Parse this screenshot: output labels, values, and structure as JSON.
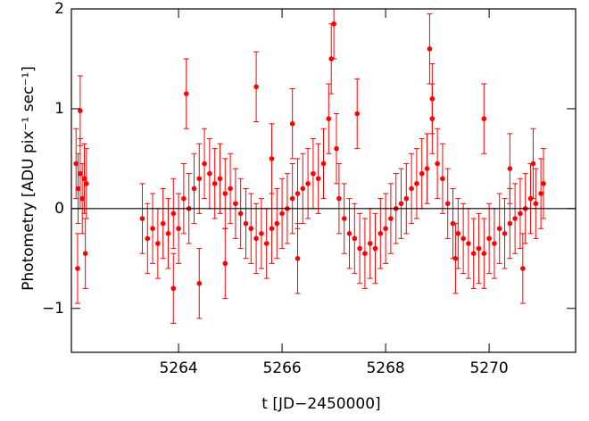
{
  "chart_data": {
    "type": "scatter",
    "xlabel": "t [JD−2450000]",
    "ylabel": "Photometry [ADU pix⁻¹ sec⁻¹]",
    "xlim": [
      5261.93,
      5271.67
    ],
    "ylim": [
      -1.44,
      2.0
    ],
    "xticks": [
      5264,
      5266,
      5268,
      5270
    ],
    "yticks": [
      {
        "value": -1,
        "label": "−1"
      },
      0,
      1,
      2
    ],
    "hline": 0,
    "yerr": 0.35,
    "series": [
      {
        "color": "#ff0000",
        "x": [
          5262.02,
          5262.06,
          5262.1,
          5262.14,
          5262.18,
          5262.22,
          5262.1,
          5262.05,
          5262.2,
          5263.3,
          5263.4,
          5263.5,
          5263.6,
          5263.7,
          5263.8,
          5263.9,
          5264.0,
          5264.1,
          5264.2,
          5264.3,
          5264.4,
          5264.5,
          5264.6,
          5264.7,
          5264.8,
          5264.9,
          5265.0,
          5265.1,
          5265.2,
          5265.3,
          5265.4,
          5265.5,
          5265.6,
          5265.7,
          5265.8,
          5265.9,
          5266.0,
          5266.1,
          5266.2,
          5266.3,
          5266.4,
          5266.5,
          5266.6,
          5266.7,
          5266.8,
          5266.9,
          5266.95,
          5267.0,
          5267.05,
          5267.1,
          5267.2,
          5267.3,
          5267.4,
          5267.5,
          5267.6,
          5267.7,
          5267.8,
          5267.9,
          5268.0,
          5268.1,
          5268.2,
          5268.3,
          5268.4,
          5268.5,
          5268.6,
          5268.7,
          5268.8,
          5268.9,
          5269.0,
          5269.1,
          5269.2,
          5269.3,
          5269.4,
          5269.5,
          5269.6,
          5269.7,
          5269.8,
          5269.9,
          5270.0,
          5270.1,
          5270.2,
          5270.3,
          5270.4,
          5270.5,
          5270.6,
          5270.7,
          5270.8,
          5270.9,
          5271.0,
          5271.05,
          5263.9,
          5264.15,
          5264.4,
          5264.9,
          5265.5,
          5265.8,
          5266.3,
          5266.2,
          5267.45,
          5268.85,
          5268.9,
          5269.35,
          5269.9,
          5270.4,
          5270.65,
          5270.85
        ],
        "values": [
          0.45,
          0.2,
          0.35,
          0.1,
          0.3,
          0.25,
          0.98,
          -0.6,
          -0.45,
          -0.1,
          -0.3,
          -0.2,
          -0.35,
          -0.15,
          -0.25,
          -0.05,
          -0.2,
          0.1,
          0.0,
          0.2,
          0.3,
          0.45,
          0.35,
          0.25,
          0.3,
          0.15,
          0.2,
          0.05,
          -0.05,
          -0.15,
          -0.2,
          -0.3,
          -0.25,
          -0.35,
          -0.2,
          -0.15,
          -0.05,
          0.0,
          0.1,
          0.15,
          0.2,
          0.25,
          0.35,
          0.3,
          0.45,
          0.9,
          1.5,
          1.85,
          0.6,
          0.1,
          -0.1,
          -0.25,
          -0.3,
          -0.4,
          -0.45,
          -0.35,
          -0.4,
          -0.25,
          -0.2,
          -0.1,
          0.0,
          0.05,
          0.1,
          0.2,
          0.25,
          0.35,
          0.4,
          0.9,
          0.45,
          0.3,
          0.05,
          -0.15,
          -0.25,
          -0.3,
          -0.35,
          -0.45,
          -0.4,
          -0.45,
          -0.3,
          -0.35,
          -0.2,
          -0.25,
          -0.15,
          -0.1,
          -0.05,
          0.0,
          0.1,
          0.05,
          0.15,
          0.25,
          -0.8,
          1.15,
          -0.75,
          -0.55,
          1.22,
          0.5,
          -0.5,
          0.85,
          0.95,
          1.6,
          1.1,
          -0.5,
          0.9,
          0.4,
          -0.6,
          0.45
        ]
      }
    ]
  }
}
